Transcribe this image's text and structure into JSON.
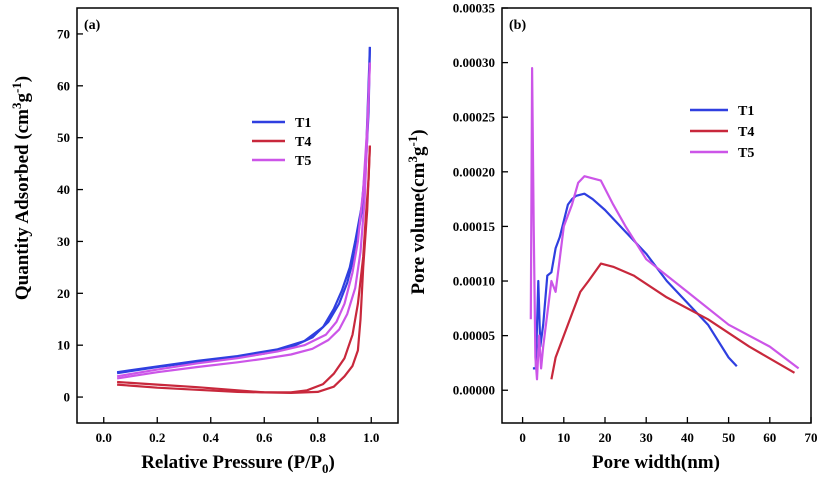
{
  "colors": {
    "T1": "#2f3fe0",
    "T4": "#c8283c",
    "T5": "#cc55e8"
  },
  "chart_data": [
    {
      "type": "line",
      "panel_label": "(a)",
      "xlabel_main": "Relative Pressure (P/P",
      "xlabel_sub": "0",
      "xlabel_end": ")",
      "ylabel_main": "Quantity Adsorbed (cm",
      "ylabel_sup1": "3",
      "ylabel_mid": "g",
      "ylabel_sup2": "-1",
      "ylabel_end": ")",
      "xlim": [
        -0.1,
        1.1
      ],
      "ylim": [
        -5,
        75
      ],
      "xticks": [
        0.0,
        0.2,
        0.4,
        0.6,
        0.8,
        1.0
      ],
      "xtick_labels": [
        "0.0",
        "0.2",
        "0.4",
        "0.6",
        "0.8",
        "1.0"
      ],
      "yticks": [
        0,
        10,
        20,
        30,
        40,
        50,
        60,
        70
      ],
      "ytick_labels": [
        "0",
        "10",
        "20",
        "30",
        "40",
        "50",
        "60",
        "70"
      ],
      "legend": {
        "position": "center-right",
        "entries": [
          "T1",
          "T4",
          "T5"
        ]
      },
      "series": [
        {
          "name": "T1",
          "segments": [
            [
              [
                0.05,
                4.6
              ],
              [
                0.2,
                5.8
              ],
              [
                0.35,
                6.8
              ],
              [
                0.5,
                7.6
              ],
              [
                0.6,
                8.4
              ],
              [
                0.7,
                9.6
              ],
              [
                0.78,
                11.5
              ],
              [
                0.84,
                14.5
              ],
              [
                0.88,
                18
              ],
              [
                0.91,
                22
              ],
              [
                0.94,
                28
              ],
              [
                0.965,
                36
              ],
              [
                0.98,
                45
              ],
              [
                0.99,
                55
              ],
              [
                0.995,
                67.5
              ]
            ],
            [
              [
                0.995,
                67.5
              ],
              [
                0.98,
                46
              ],
              [
                0.965,
                37
              ],
              [
                0.94,
                30
              ],
              [
                0.92,
                25
              ],
              [
                0.89,
                20.5
              ],
              [
                0.86,
                17
              ],
              [
                0.82,
                13.5
              ],
              [
                0.75,
                10.8
              ],
              [
                0.65,
                9.2
              ],
              [
                0.5,
                7.9
              ],
              [
                0.35,
                7
              ],
              [
                0.2,
                5.9
              ],
              [
                0.05,
                4.8
              ]
            ]
          ]
        },
        {
          "name": "T4",
          "segments": [
            [
              [
                0.05,
                2.4
              ],
              [
                0.2,
                1.8
              ],
              [
                0.35,
                1.4
              ],
              [
                0.5,
                1.0
              ],
              [
                0.6,
                0.9
              ],
              [
                0.7,
                0.9
              ],
              [
                0.76,
                1.3
              ],
              [
                0.82,
                2.5
              ],
              [
                0.86,
                4.5
              ],
              [
                0.9,
                7.5
              ],
              [
                0.93,
                12
              ],
              [
                0.95,
                18
              ],
              [
                0.97,
                27
              ],
              [
                0.98,
                35
              ],
              [
                0.99,
                42
              ],
              [
                0.995,
                48.5
              ]
            ],
            [
              [
                0.995,
                48.5
              ],
              [
                0.985,
                36
              ],
              [
                0.97,
                25
              ],
              [
                0.96,
                15
              ],
              [
                0.95,
                9
              ],
              [
                0.93,
                6
              ],
              [
                0.9,
                4
              ],
              [
                0.86,
                2
              ],
              [
                0.8,
                1
              ],
              [
                0.7,
                0.8
              ],
              [
                0.6,
                0.9
              ],
              [
                0.5,
                1.3
              ],
              [
                0.35,
                1.9
              ],
              [
                0.2,
                2.4
              ],
              [
                0.05,
                2.9
              ]
            ]
          ]
        },
        {
          "name": "T5",
          "segments": [
            [
              [
                0.05,
                3.6
              ],
              [
                0.2,
                4.8
              ],
              [
                0.35,
                5.8
              ],
              [
                0.5,
                6.7
              ],
              [
                0.6,
                7.4
              ],
              [
                0.7,
                8.2
              ],
              [
                0.78,
                9.3
              ],
              [
                0.84,
                11
              ],
              [
                0.88,
                13
              ],
              [
                0.91,
                16
              ],
              [
                0.94,
                21
              ],
              [
                0.96,
                28
              ],
              [
                0.975,
                38
              ],
              [
                0.985,
                50
              ],
              [
                0.995,
                64.5
              ]
            ],
            [
              [
                0.995,
                64.5
              ],
              [
                0.985,
                52
              ],
              [
                0.97,
                40
              ],
              [
                0.95,
                30
              ],
              [
                0.93,
                24
              ],
              [
                0.9,
                18
              ],
              [
                0.87,
                14.5
              ],
              [
                0.83,
                12
              ],
              [
                0.75,
                10
              ],
              [
                0.65,
                8.8
              ],
              [
                0.5,
                7.5
              ],
              [
                0.35,
                6.5
              ],
              [
                0.2,
                5.3
              ],
              [
                0.05,
                4
              ]
            ]
          ]
        }
      ]
    },
    {
      "type": "line",
      "panel_label": "(b)",
      "xlabel": "Pore width(nm)",
      "ylabel_main": "Pore volume(cm",
      "ylabel_sup1": "3",
      "ylabel_mid": "g",
      "ylabel_sup2": "-1",
      "ylabel_end": ")",
      "xlim": [
        -5,
        70
      ],
      "ylim": [
        -3e-05,
        0.00035
      ],
      "xticks": [
        0,
        10,
        20,
        30,
        40,
        50,
        60,
        70
      ],
      "xtick_labels": [
        "0",
        "10",
        "20",
        "30",
        "40",
        "50",
        "60",
        "70"
      ],
      "yticks": [
        0,
        5e-05,
        0.0001,
        0.00015,
        0.0002,
        0.00025,
        0.0003,
        0.00035
      ],
      "ytick_labels": [
        "0.00000",
        "0.00005",
        "0.00010",
        "0.00015",
        "0.00020",
        "0.00025",
        "0.00030",
        "0.00035"
      ],
      "legend": {
        "position": "upper-right",
        "entries": [
          "T1",
          "T4",
          "T5"
        ]
      },
      "series": [
        {
          "name": "T1",
          "segments": [
            [
              [
                2.5,
                2e-05
              ],
              [
                3.2,
                2e-05
              ],
              [
                3.8,
                0.0001
              ],
              [
                4.3,
                4e-05
              ],
              [
                5,
                6e-05
              ],
              [
                6,
                0.000105
              ],
              [
                7,
                0.000108
              ],
              [
                8,
                0.00013
              ],
              [
                9,
                0.00014
              ],
              [
                10,
                0.000155
              ],
              [
                11,
                0.00017
              ],
              [
                12,
                0.000175
              ],
              [
                13,
                0.000178
              ],
              [
                15,
                0.00018
              ],
              [
                17,
                0.000175
              ],
              [
                20,
                0.000165
              ],
              [
                25,
                0.000145
              ],
              [
                30,
                0.000125
              ],
              [
                35,
                0.0001
              ],
              [
                40,
                8e-05
              ],
              [
                45,
                6e-05
              ],
              [
                50,
                3e-05
              ],
              [
                52,
                2.2e-05
              ]
            ]
          ]
        },
        {
          "name": "T4",
          "segments": [
            [
              [
                7,
                1e-05
              ],
              [
                8,
                3e-05
              ],
              [
                10,
                5e-05
              ],
              [
                12,
                7e-05
              ],
              [
                14,
                9e-05
              ],
              [
                16,
                0.0001
              ],
              [
                19,
                0.000116
              ],
              [
                22,
                0.000113
              ],
              [
                27,
                0.000105
              ],
              [
                35,
                8.5e-05
              ],
              [
                45,
                6.5e-05
              ],
              [
                55,
                4e-05
              ],
              [
                66,
                1.6e-05
              ]
            ]
          ]
        },
        {
          "name": "T5",
          "segments": [
            [
              [
                2,
                6.5e-05
              ],
              [
                2.3,
                0.000295
              ],
              [
                2.7,
                0.00015
              ],
              [
                3.1,
                3e-05
              ],
              [
                3.5,
                1e-05
              ],
              [
                4,
                5e-05
              ],
              [
                4.5,
                2e-05
              ],
              [
                5,
                4e-05
              ],
              [
                6,
                7e-05
              ],
              [
                7,
                0.0001
              ],
              [
                8,
                9e-05
              ],
              [
                9,
                0.00012
              ],
              [
                10,
                0.00015
              ],
              [
                12,
                0.00017
              ],
              [
                13.5,
                0.00019
              ],
              [
                15,
                0.000196
              ],
              [
                19,
                0.000192
              ],
              [
                22,
                0.00017
              ],
              [
                25,
                0.00015
              ],
              [
                30,
                0.00012
              ],
              [
                40,
                9e-05
              ],
              [
                50,
                6e-05
              ],
              [
                60,
                4e-05
              ],
              [
                67,
                2e-05
              ]
            ]
          ]
        }
      ]
    }
  ]
}
